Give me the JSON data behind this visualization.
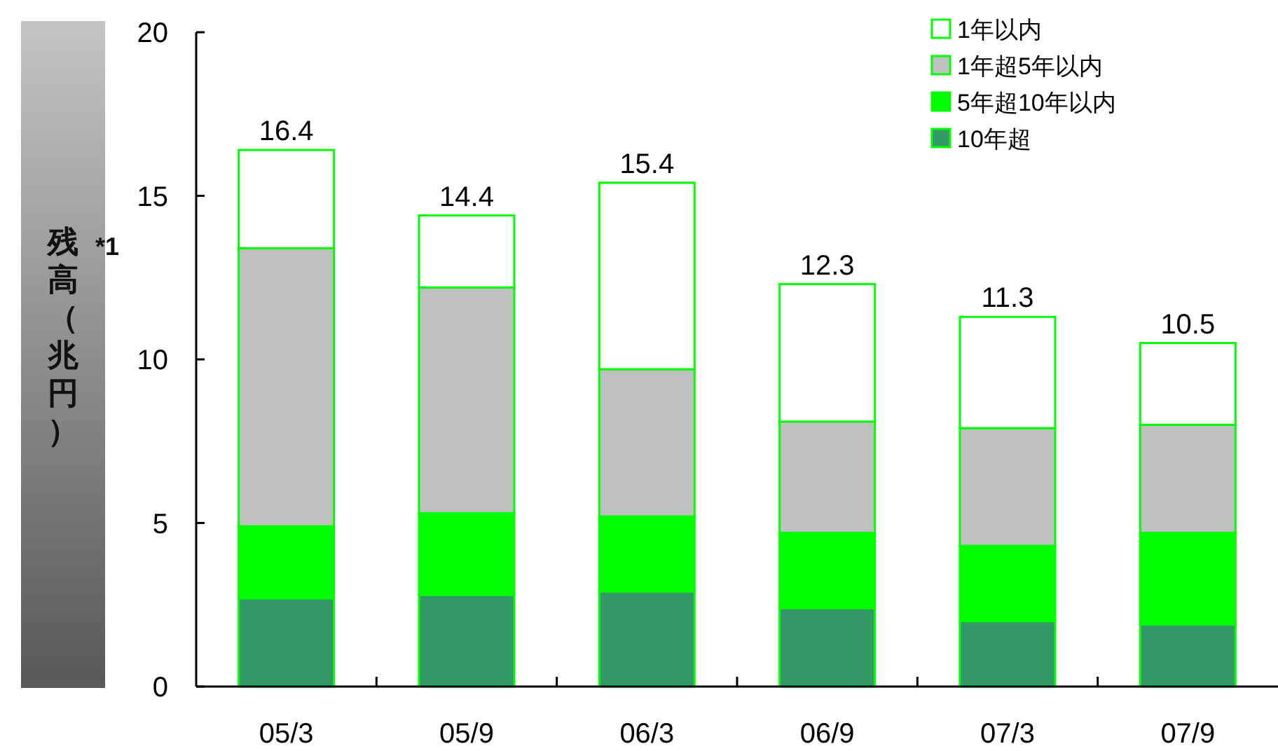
{
  "chart_data": {
    "type": "bar",
    "stacked": true,
    "ylabel": "残高（兆円）",
    "annotations": [
      "*1"
    ],
    "categories": [
      "05/3",
      "05/9",
      "06/3",
      "06/9",
      "07/3",
      "07/9"
    ],
    "series": [
      {
        "name": "10年超",
        "color": "#339966",
        "values": [
          2.7,
          2.8,
          2.9,
          2.4,
          2.0,
          1.9
        ]
      },
      {
        "name": "5年超10年以内",
        "color": "#00ff00",
        "values": [
          2.2,
          2.5,
          2.3,
          2.3,
          2.3,
          2.8
        ]
      },
      {
        "name": "1年超5年以内",
        "color": "#c0c0c0",
        "values": [
          8.5,
          6.9,
          4.5,
          3.4,
          3.6,
          3.3
        ]
      },
      {
        "name": "1年以内",
        "color": "#ffffff",
        "values": [
          3.0,
          2.2,
          5.7,
          4.2,
          3.4,
          2.5
        ]
      }
    ],
    "totals": [
      "16.4",
      "14.4",
      "15.4",
      "12.3",
      "11.3",
      "10.5"
    ],
    "ylim": [
      0,
      20
    ],
    "yticks": [
      0,
      5,
      10,
      15,
      20
    ],
    "grid": false,
    "legend": "top right"
  }
}
